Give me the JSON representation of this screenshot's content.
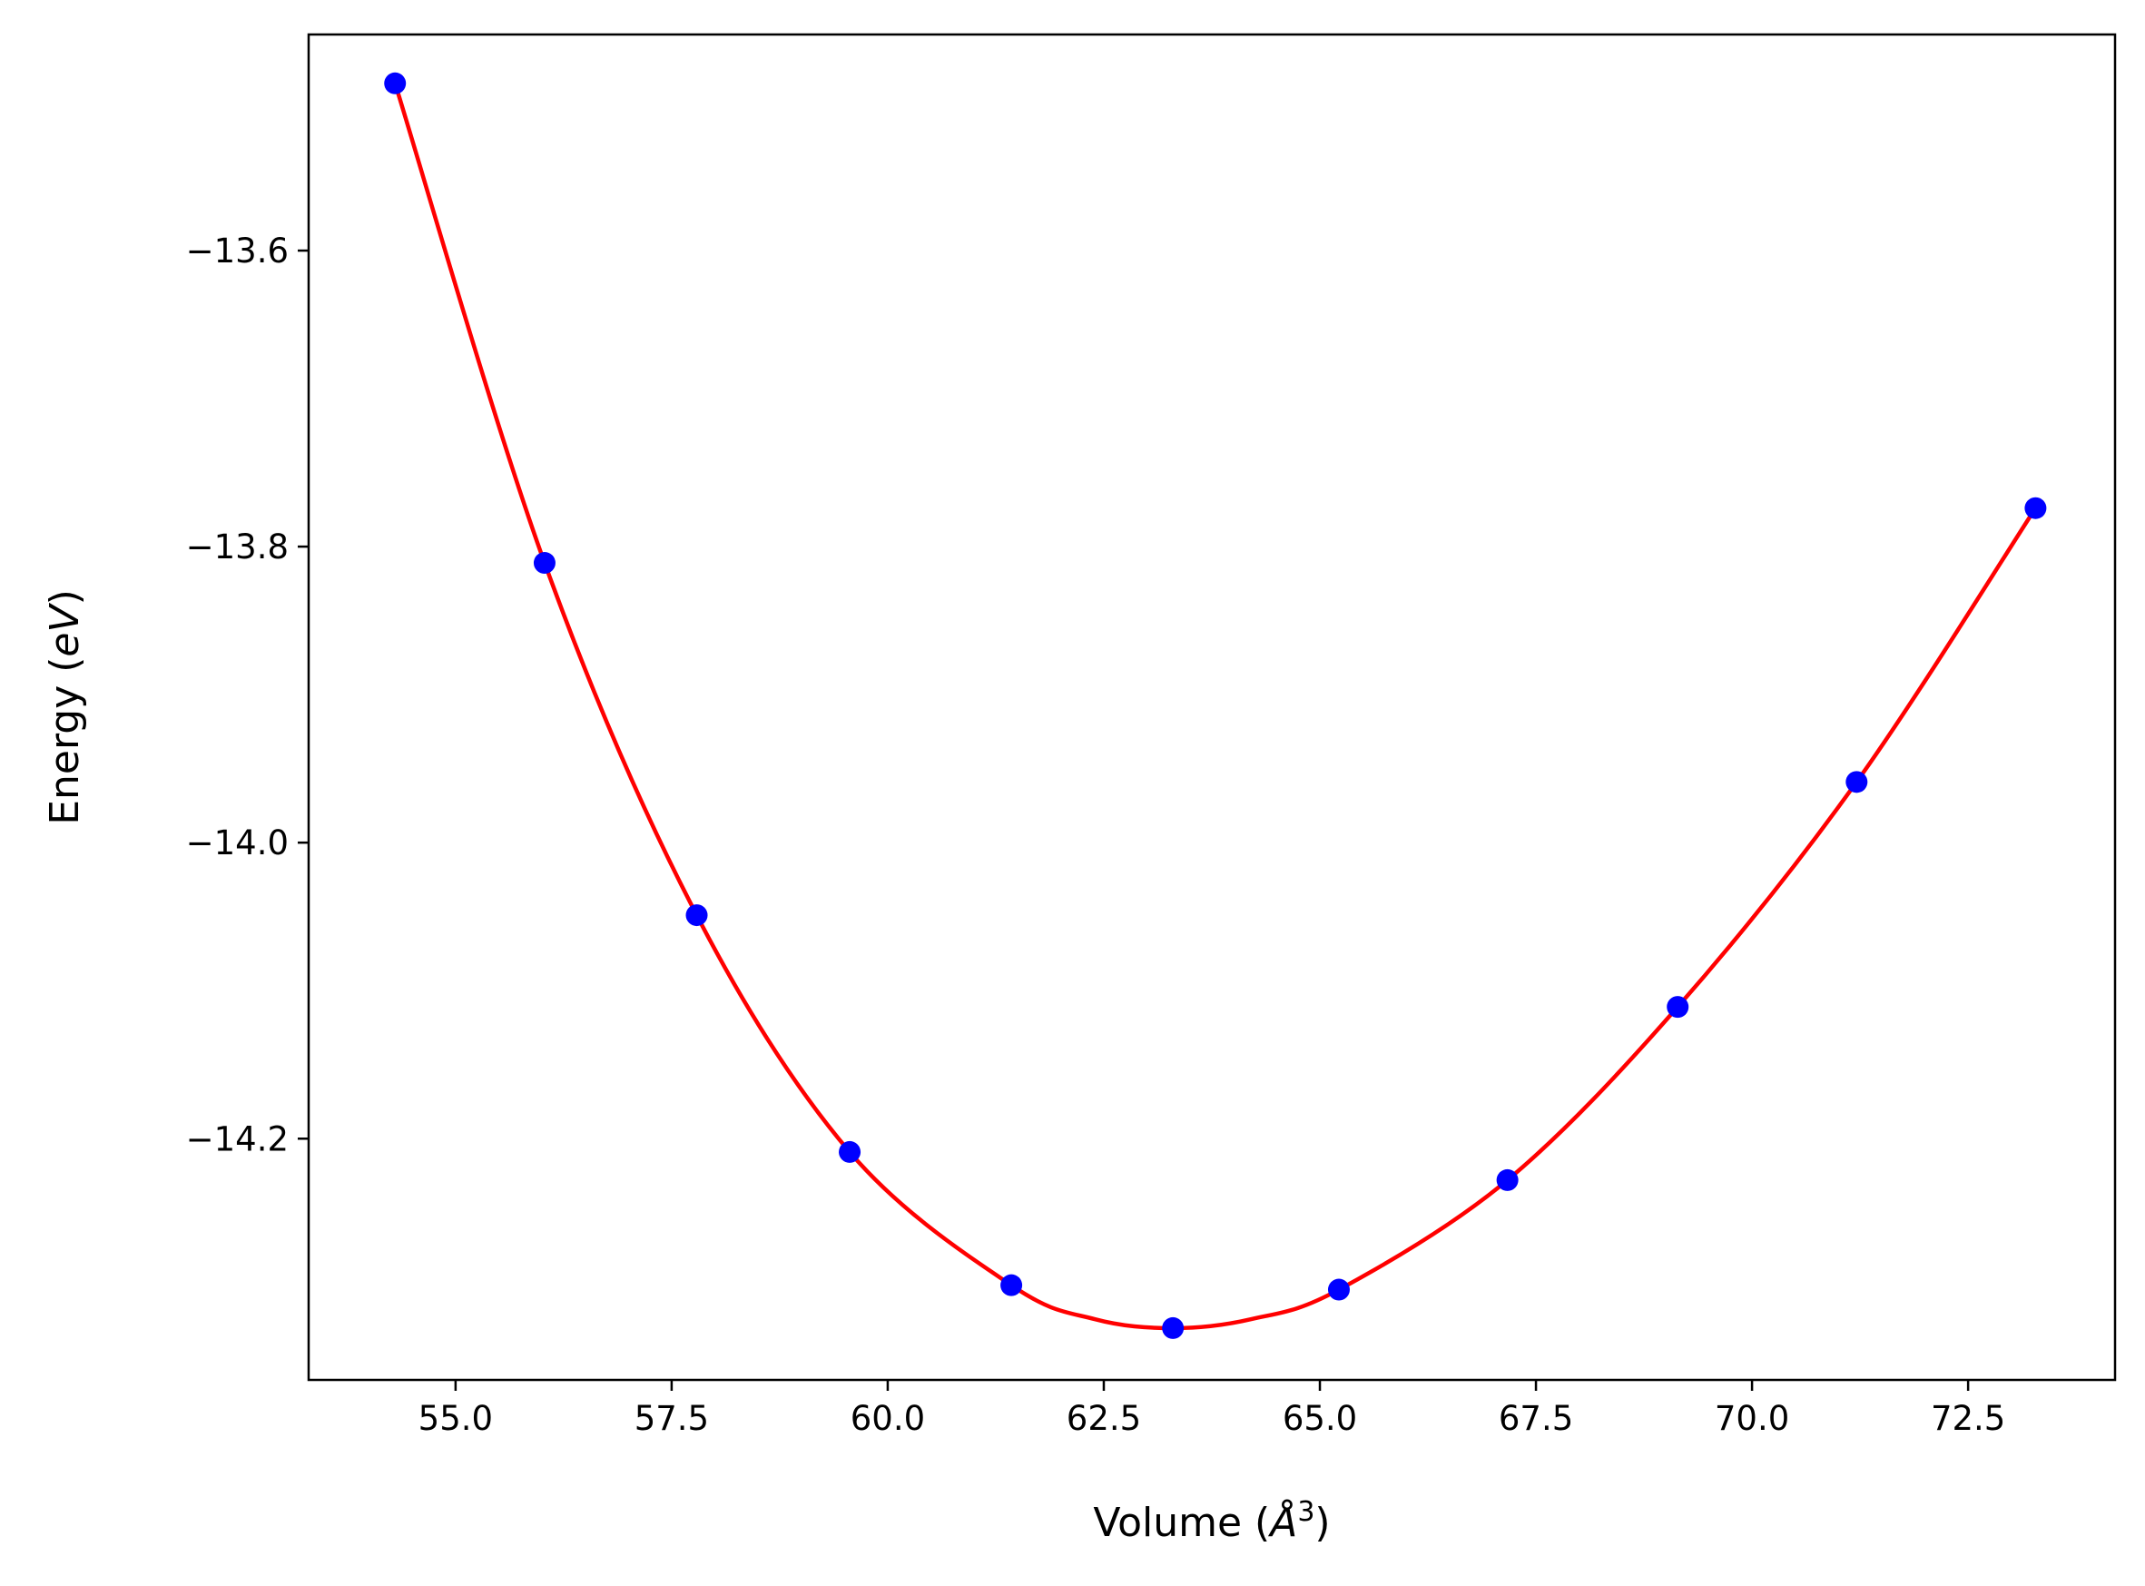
{
  "chart_data": {
    "type": "scatter",
    "xlabel_prefix": "Volume (",
    "xlabel_unit": "Å",
    "xlabel_exp": "3",
    "xlabel_suffix": ")",
    "ylabel_prefix": "Energy (",
    "ylabel_unit": "eV",
    "ylabel_suffix": ")",
    "xlim": [
      53.3,
      74.2
    ],
    "ylim": [
      -14.363,
      -13.454
    ],
    "xticks": [
      55.0,
      57.5,
      60.0,
      62.5,
      65.0,
      67.5,
      70.0,
      72.5
    ],
    "xtick_labels": [
      "55.0",
      "57.5",
      "60.0",
      "62.5",
      "65.0",
      "67.5",
      "70.0",
      "72.5"
    ],
    "yticks": [
      -13.6,
      -13.8,
      -14.0,
      -14.2
    ],
    "ytick_labels": [
      "−13.6",
      "−13.8",
      "−14.0",
      "−14.2"
    ],
    "grid": false,
    "series": [
      {
        "type": "scatter",
        "color": "#0000ff",
        "x": [
          54.3,
          56.03,
          57.79,
          59.56,
          61.43,
          63.3,
          65.22,
          67.17,
          69.14,
          71.21,
          73.28
        ],
        "y": [
          -13.487,
          -13.811,
          -14.049,
          -14.209,
          -14.299,
          -14.328,
          -14.302,
          -14.228,
          -14.111,
          -13.959,
          -13.774
        ]
      },
      {
        "type": "line",
        "color": "#ff0000",
        "x": [
          54.3,
          56.03,
          57.79,
          59.56,
          61.43,
          62.4,
          63.3,
          64.2,
          65.22,
          67.17,
          69.14,
          71.21,
          73.28
        ],
        "y": [
          -13.487,
          -13.811,
          -14.049,
          -14.209,
          -14.299,
          -14.322,
          -14.328,
          -14.322,
          -14.302,
          -14.228,
          -14.111,
          -13.959,
          -13.774
        ]
      }
    ]
  }
}
